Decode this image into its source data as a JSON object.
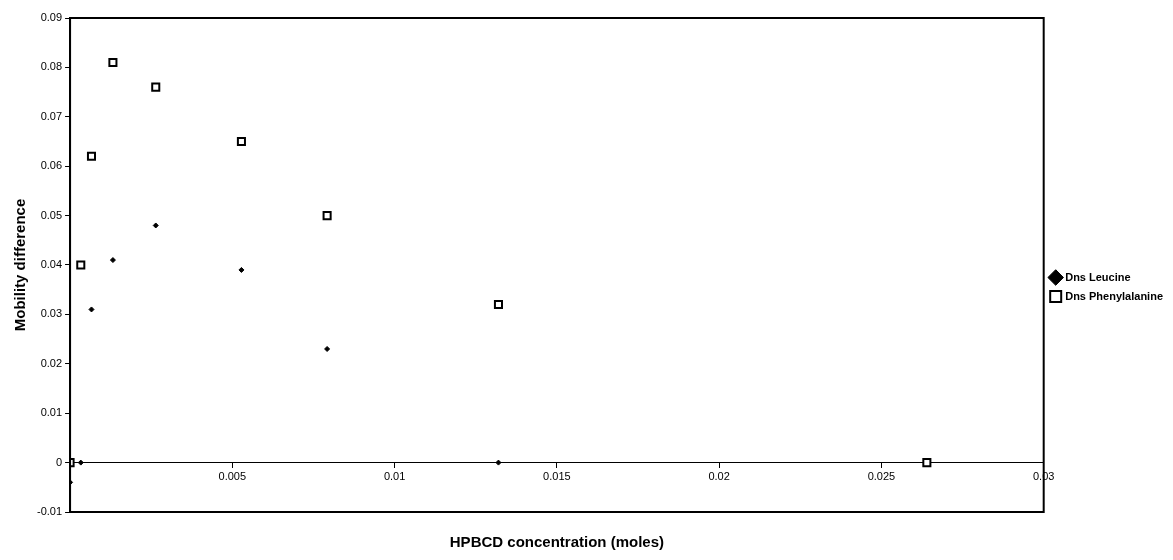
{
  "chart_data": {
    "type": "scatter",
    "xlabel": "HPBCD concentration (moles)",
    "ylabel": "Mobility difference",
    "xlim": [
      0,
      0.03
    ],
    "xticks": [
      0.005,
      0.01,
      0.015,
      0.02,
      0.025,
      0.03
    ],
    "ylim": [
      -0.01,
      0.09
    ],
    "yticks": [
      -0.01,
      0,
      0.01,
      0.02,
      0.03,
      0.04,
      0.05,
      0.06,
      0.07,
      0.08,
      0.09
    ],
    "grid": false,
    "legend": "right",
    "series": [
      {
        "name": "Dns Leucine",
        "color": "#000000",
        "marker": "diamond",
        "x": [
          0,
          0.00033,
          0.00066,
          0.00132,
          0.00264,
          0.00528,
          0.00792,
          0.0132
        ],
        "values": [
          -0.004,
          0,
          0.031,
          0.041,
          0.048,
          0.039,
          0.023,
          0
        ]
      },
      {
        "name": "Dns Phenylalanine",
        "color": "#000000",
        "marker": "square",
        "x": [
          0,
          0.00033,
          0.00066,
          0.00132,
          0.00264,
          0.00528,
          0.00792,
          0.0132,
          0.0264
        ],
        "values": [
          0,
          0.04,
          0.062,
          0.081,
          0.076,
          0.065,
          0.05,
          0.032,
          0
        ]
      }
    ]
  }
}
